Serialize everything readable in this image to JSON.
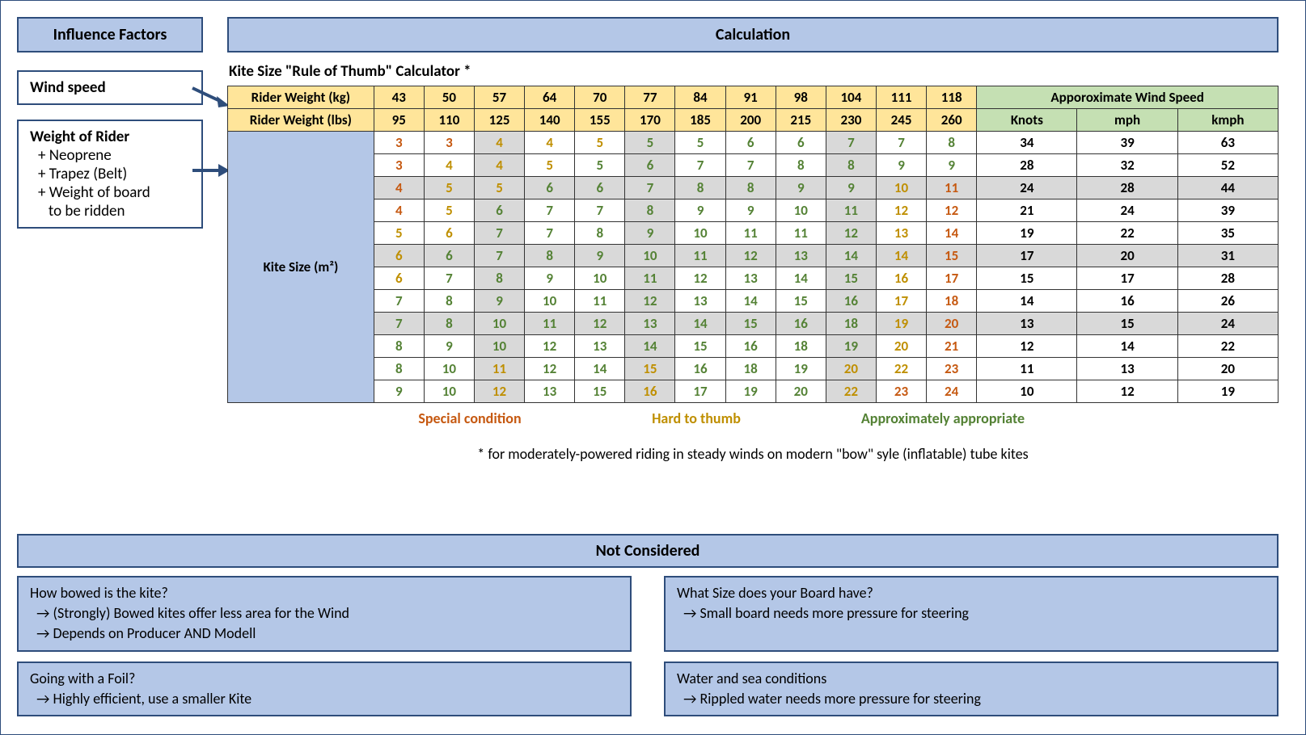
{
  "left": {
    "title": "Influence Factors",
    "wind": "Wind speed",
    "rider_title": "Weight of Rider",
    "rider_items": [
      "+ Neoprene",
      "+ Trapez (Belt)",
      "+ Weight of board",
      "   to be ridden"
    ]
  },
  "right": {
    "title": "Calculation",
    "table_title": "Kite Size \"Rule of Thumb\" Calculator *",
    "row1_label": "Rider Weight (kg)",
    "row2_label": "Rider Weight (lbs)",
    "kg": [
      "43",
      "50",
      "57",
      "64",
      "70",
      "77",
      "84",
      "91",
      "98",
      "104",
      "111",
      "118"
    ],
    "lbs": [
      "95",
      "110",
      "125",
      "140",
      "155",
      "170",
      "185",
      "200",
      "215",
      "230",
      "245",
      "260"
    ],
    "wind_header": "Apporoximate Wind Speed",
    "wind_units": [
      "Knots",
      "mph",
      "kmph"
    ],
    "kite_label": "Kite Size (m²)",
    "color_class": [
      "c-special",
      "c-hard",
      "c-approp"
    ],
    "grey_cols": [
      2,
      5,
      9
    ],
    "grey_rows": [
      2,
      5,
      8
    ],
    "rows": [
      {
        "v": [
          "3",
          "3",
          "4",
          "4",
          "5",
          "5",
          "5",
          "6",
          "6",
          "7",
          "7",
          "8"
        ],
        "c": [
          0,
          0,
          1,
          1,
          1,
          2,
          2,
          2,
          2,
          2,
          2,
          2
        ],
        "w": [
          "34",
          "39",
          "63"
        ]
      },
      {
        "v": [
          "3",
          "4",
          "4",
          "5",
          "5",
          "6",
          "7",
          "7",
          "8",
          "8",
          "9",
          "9"
        ],
        "c": [
          0,
          1,
          1,
          1,
          2,
          2,
          2,
          2,
          2,
          2,
          2,
          2
        ],
        "w": [
          "28",
          "32",
          "52"
        ]
      },
      {
        "v": [
          "4",
          "5",
          "5",
          "6",
          "6",
          "7",
          "8",
          "8",
          "9",
          "9",
          "10",
          "11"
        ],
        "c": [
          0,
          1,
          1,
          2,
          2,
          2,
          2,
          2,
          2,
          2,
          1,
          0
        ],
        "w": [
          "24",
          "28",
          "44"
        ]
      },
      {
        "v": [
          "4",
          "5",
          "6",
          "7",
          "7",
          "8",
          "9",
          "9",
          "10",
          "11",
          "12",
          "12"
        ],
        "c": [
          0,
          1,
          2,
          2,
          2,
          2,
          2,
          2,
          2,
          2,
          1,
          0
        ],
        "w": [
          "21",
          "24",
          "39"
        ]
      },
      {
        "v": [
          "5",
          "6",
          "7",
          "7",
          "8",
          "9",
          "10",
          "11",
          "11",
          "12",
          "13",
          "14"
        ],
        "c": [
          1,
          1,
          2,
          2,
          2,
          2,
          2,
          2,
          2,
          2,
          1,
          0
        ],
        "w": [
          "19",
          "22",
          "35"
        ]
      },
      {
        "v": [
          "6",
          "6",
          "7",
          "8",
          "9",
          "10",
          "11",
          "12",
          "13",
          "14",
          "14",
          "15"
        ],
        "c": [
          1,
          2,
          2,
          2,
          2,
          2,
          2,
          2,
          2,
          2,
          1,
          0
        ],
        "w": [
          "17",
          "20",
          "31"
        ]
      },
      {
        "v": [
          "6",
          "7",
          "8",
          "9",
          "10",
          "11",
          "12",
          "13",
          "14",
          "15",
          "16",
          "17"
        ],
        "c": [
          1,
          2,
          2,
          2,
          2,
          2,
          2,
          2,
          2,
          2,
          1,
          0
        ],
        "w": [
          "15",
          "17",
          "28"
        ]
      },
      {
        "v": [
          "7",
          "8",
          "9",
          "10",
          "11",
          "12",
          "13",
          "14",
          "15",
          "16",
          "17",
          "18"
        ],
        "c": [
          2,
          2,
          2,
          2,
          2,
          2,
          2,
          2,
          2,
          2,
          1,
          0
        ],
        "w": [
          "14",
          "16",
          "26"
        ]
      },
      {
        "v": [
          "7",
          "8",
          "10",
          "11",
          "12",
          "13",
          "14",
          "15",
          "16",
          "18",
          "19",
          "20"
        ],
        "c": [
          2,
          2,
          2,
          2,
          2,
          2,
          2,
          2,
          2,
          2,
          1,
          0
        ],
        "w": [
          "13",
          "15",
          "24"
        ]
      },
      {
        "v": [
          "8",
          "9",
          "10",
          "12",
          "13",
          "14",
          "15",
          "16",
          "18",
          "19",
          "20",
          "21"
        ],
        "c": [
          2,
          2,
          2,
          2,
          2,
          2,
          2,
          2,
          2,
          2,
          1,
          0
        ],
        "w": [
          "12",
          "14",
          "22"
        ]
      },
      {
        "v": [
          "8",
          "10",
          "11",
          "12",
          "14",
          "15",
          "16",
          "18",
          "19",
          "20",
          "22",
          "23"
        ],
        "c": [
          2,
          2,
          1,
          2,
          2,
          1,
          2,
          2,
          2,
          1,
          1,
          0
        ],
        "w": [
          "11",
          "13",
          "20"
        ]
      },
      {
        "v": [
          "9",
          "10",
          "12",
          "13",
          "15",
          "16",
          "17",
          "19",
          "20",
          "22",
          "23",
          "24"
        ],
        "c": [
          2,
          2,
          1,
          2,
          2,
          1,
          2,
          2,
          2,
          1,
          0,
          0
        ],
        "w": [
          "10",
          "12",
          "19"
        ]
      }
    ],
    "legend": [
      "Special condition",
      "Hard to thumb",
      "Approximately appropriate"
    ],
    "footnote": "* for moderately-powered riding in steady winds on modern \"bow\" syle (inflatable) tube kites"
  },
  "colors": {
    "special": "#c65911",
    "hard": "#bf8f00",
    "approp": "#548235",
    "box_bg": "#b4c7e7",
    "box_border": "#2e4d7b",
    "yellow": "#ffe59a",
    "green": "#c5e0b3",
    "grey": "#d9d9d9"
  },
  "nc": {
    "title": "Not Considered",
    "items": [
      "How bowed is the kite?\n→ (Strongly) Bowed kites offer less area for the Wind\n→ Depends on Producer AND Modell",
      "What Size does your Board have?\n→ Small board needs more pressure for steering",
      "Going with a Foil?\n→ Highly efficient, use a smaller Kite",
      "Water and sea conditions\n→ Rippled water needs more pressure for steering"
    ]
  }
}
